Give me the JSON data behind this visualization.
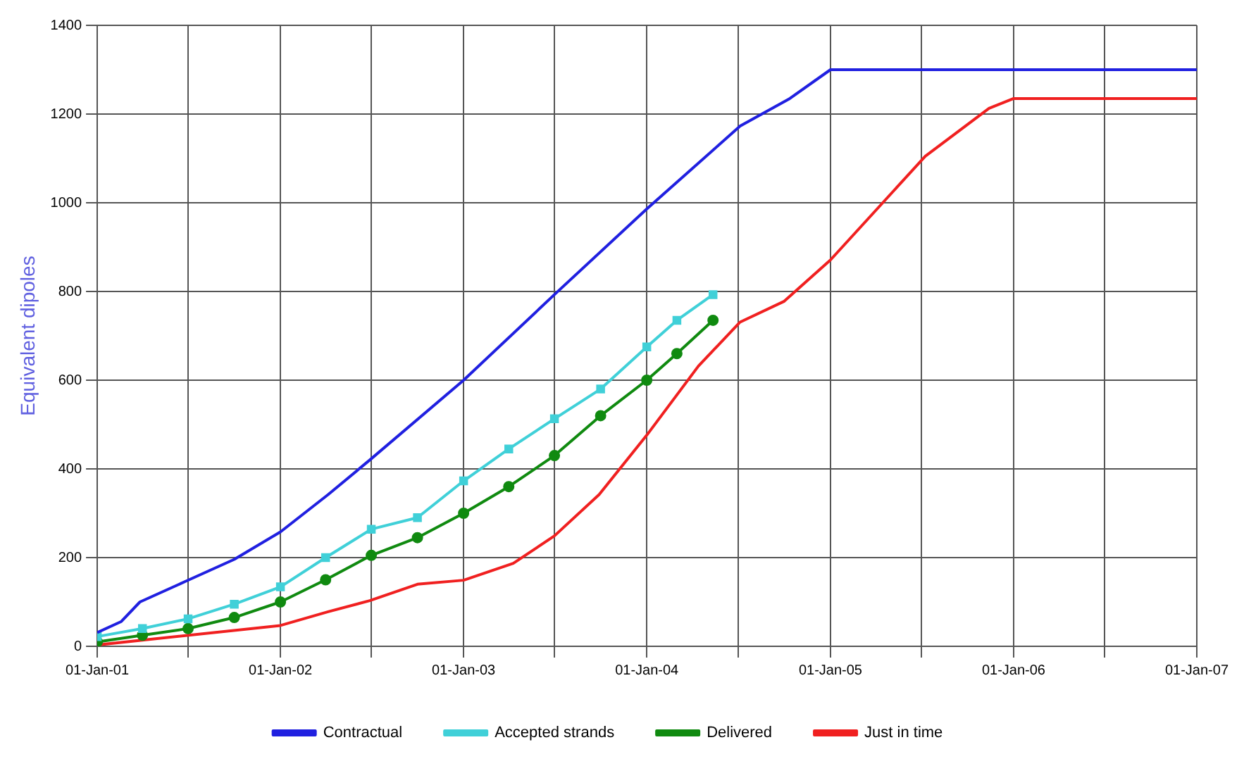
{
  "chart_data": {
    "type": "line",
    "ylabel": "Equivalent dipoles",
    "ylim": [
      0,
      1400
    ],
    "yticks": [
      0,
      200,
      400,
      600,
      800,
      1000,
      1200,
      1400
    ],
    "xlim": [
      "2001-01-01",
      "2007-01-01"
    ],
    "xticks": [
      {
        "value": "2001-01-01",
        "label": "01-Jan-01"
      },
      {
        "value": "2001-07-01",
        "label": null
      },
      {
        "value": "2002-01-01",
        "label": "01-Jan-02"
      },
      {
        "value": "2002-07-01",
        "label": null
      },
      {
        "value": "2003-01-01",
        "label": "01-Jan-03"
      },
      {
        "value": "2003-07-01",
        "label": null
      },
      {
        "value": "2004-01-01",
        "label": "01-Jan-04"
      },
      {
        "value": "2004-07-01",
        "label": null
      },
      {
        "value": "2005-01-01",
        "label": "01-Jan-05"
      },
      {
        "value": "2005-07-01",
        "label": null
      },
      {
        "value": "2006-01-01",
        "label": "01-Jan-06"
      },
      {
        "value": "2006-07-01",
        "label": null
      },
      {
        "value": "2007-01-01",
        "label": "01-Jan-07"
      }
    ],
    "grid": true,
    "legend": "bottom",
    "line_style": "solid",
    "series": [
      {
        "name": "Contractual",
        "color": "#2020e0",
        "marker": "none",
        "x": [
          "2001-01-01",
          "2001-02-18",
          "2001-03-27",
          "2001-06-25",
          "2001-10-01",
          "2002-01-01",
          "2002-04-06",
          "2002-06-28",
          "2003-01-01",
          "2003-07-01",
          "2004-01-01",
          "2004-07-05",
          "2004-10-12",
          "2005-01-01",
          "2007-01-01"
        ],
        "values": [
          31,
          56,
          100,
          146,
          196,
          258,
          342,
          420,
          600,
          793,
          986,
          1173,
          1235,
          1300,
          1300
        ]
      },
      {
        "name": "Accepted strands",
        "color": "#40d0d8",
        "marker": "square",
        "x": [
          "2001-01-01",
          "2001-04-01",
          "2001-07-01",
          "2001-10-01",
          "2002-01-01",
          "2002-04-01",
          "2002-07-01",
          "2002-10-01",
          "2003-01-01",
          "2003-04-01",
          "2003-07-01",
          "2003-10-01",
          "2004-01-01",
          "2004-03-01",
          "2004-05-12"
        ],
        "values": [
          22,
          40,
          62,
          95,
          134,
          200,
          264,
          290,
          373,
          445,
          513,
          580,
          675,
          735,
          793
        ]
      },
      {
        "name": "Delivered",
        "color": "#108a10",
        "marker": "circle",
        "x": [
          "2001-01-01",
          "2001-04-01",
          "2001-07-01",
          "2001-10-01",
          "2002-01-01",
          "2002-04-01",
          "2002-07-01",
          "2002-10-01",
          "2003-01-01",
          "2003-04-01",
          "2003-07-01",
          "2003-10-01",
          "2004-01-01",
          "2004-03-01",
          "2004-05-12"
        ],
        "values": [
          10,
          25,
          40,
          65,
          100,
          150,
          205,
          245,
          300,
          360,
          430,
          520,
          600,
          660,
          735
        ]
      },
      {
        "name": "Just in time",
        "color": "#f02020",
        "marker": "none",
        "x": [
          "2001-01-01",
          "2002-01-01",
          "2002-04-06",
          "2002-06-28",
          "2002-10-01",
          "2003-01-01",
          "2003-04-10",
          "2003-07-01",
          "2003-09-28",
          "2004-01-01",
          "2004-04-13",
          "2004-07-05",
          "2004-10-01",
          "2005-01-01",
          "2005-07-09",
          "2005-11-13",
          "2006-01-01",
          "2007-01-01"
        ],
        "values": [
          3,
          47,
          78,
          103,
          140,
          149,
          187,
          249,
          342,
          476,
          632,
          731,
          778,
          871,
          1105,
          1213,
          1235,
          1235
        ]
      }
    ]
  }
}
